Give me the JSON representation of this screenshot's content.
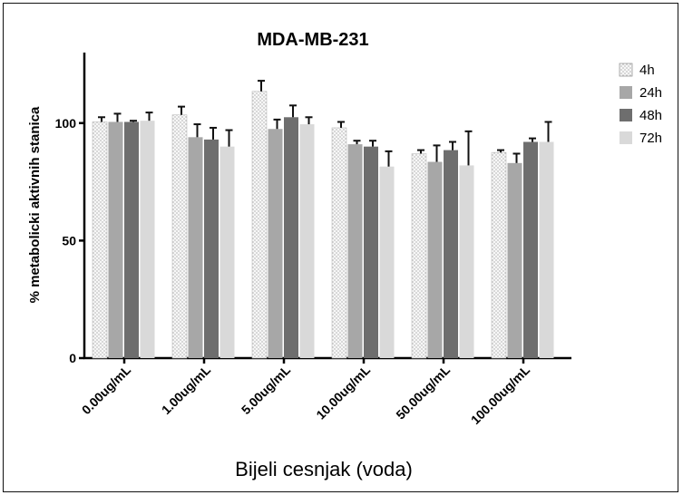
{
  "chart_data": {
    "type": "bar",
    "title": "MDA-MB-231",
    "xlabel": "Bijeli cesnjak (voda)",
    "ylabel": "% metabolicki aktivnih stanica",
    "ylim": [
      0,
      130
    ],
    "yticks": [
      "0",
      "50",
      "100"
    ],
    "categories": [
      "0.00ug/mL",
      "1.00ug/mL",
      "5.00ug/mL",
      "10.00ug/mL",
      "50.00ug/mL",
      "100.00ug/mL"
    ],
    "series": [
      {
        "name": "4h",
        "color": "#f4f4f4",
        "pattern": "dots",
        "values": [
          100.5,
          103.5,
          113.5,
          98,
          87,
          87.5
        ],
        "errors": [
          2,
          3.5,
          4.5,
          2.5,
          1.5,
          1
        ]
      },
      {
        "name": "24h",
        "color": "#a7a7a7",
        "values": [
          100.5,
          94,
          97.5,
          91,
          83.5,
          83
        ],
        "errors": [
          3.5,
          5.5,
          4,
          1.5,
          7,
          4
        ]
      },
      {
        "name": "48h",
        "color": "#6e6e6e",
        "values": [
          100.5,
          93,
          102.5,
          90,
          88.5,
          92
        ],
        "errors": [
          0.5,
          5,
          5,
          2.5,
          3.5,
          1.5
        ]
      },
      {
        "name": "72h",
        "color": "#d9d9d9",
        "values": [
          101,
          90,
          99.5,
          81.5,
          82,
          92
        ],
        "errors": [
          3.5,
          7,
          3,
          6.5,
          14.5,
          8.5
        ]
      }
    ],
    "grid": false,
    "legend": "right"
  }
}
